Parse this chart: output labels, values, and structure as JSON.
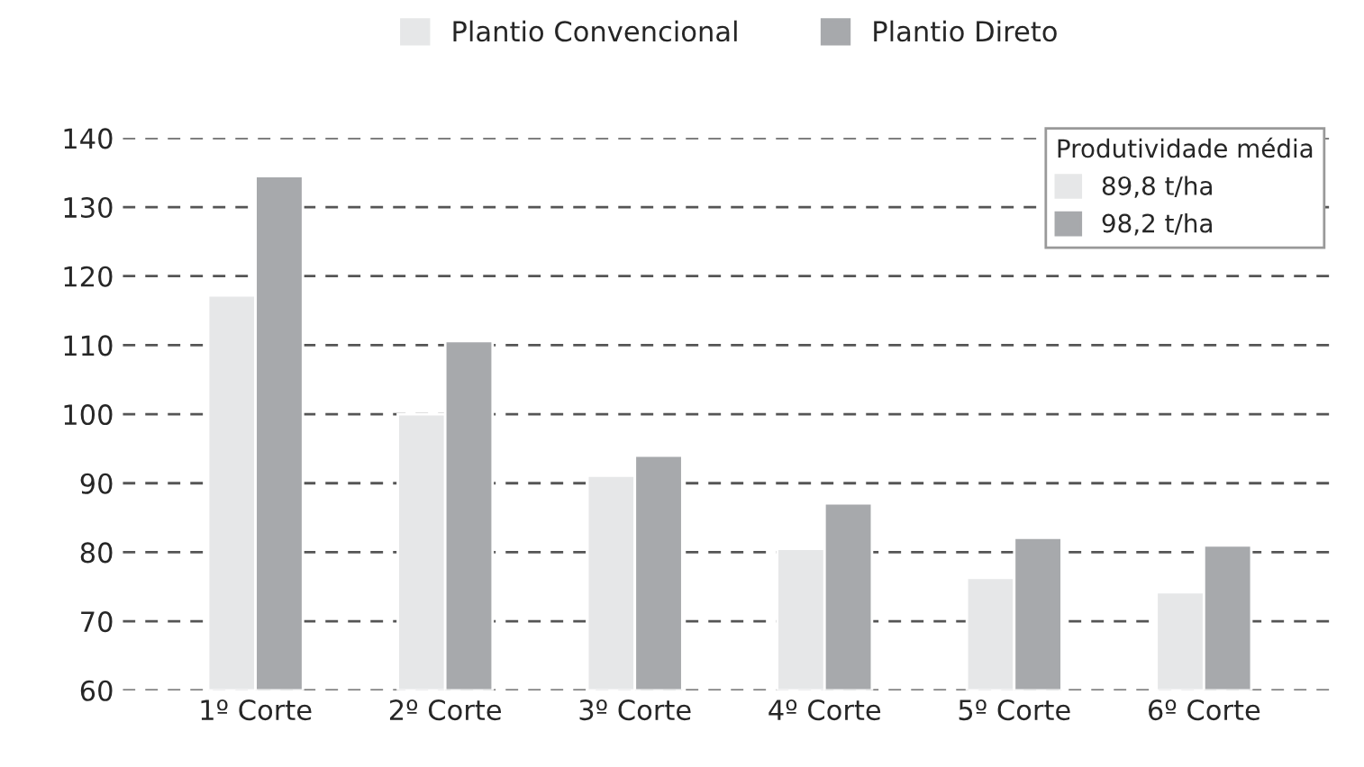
{
  "chart_data": {
    "type": "bar",
    "categories": [
      "1º Corte",
      "2º Corte",
      "3º Corte",
      "4º Corte",
      "5º Corte",
      "6º Corte"
    ],
    "series": [
      {
        "name": "Plantio Convencional",
        "color": "#e6e7e8",
        "values": [
          117.2,
          100.0,
          91.1,
          80.5,
          76.3,
          74.2
        ]
      },
      {
        "name": "Plantio Direto",
        "color": "#a7a9ac",
        "values": [
          134.5,
          110.6,
          94.0,
          87.1,
          82.1,
          81.0
        ]
      }
    ],
    "ylim": [
      60,
      140
    ],
    "yticks": [
      60,
      70,
      80,
      90,
      100,
      110,
      120,
      130,
      140
    ],
    "grid": "y",
    "legend": "top",
    "legend_title": "Produtividade média",
    "annotations": [
      "89,8 t/ha",
      "98,2 t/ha"
    ]
  }
}
